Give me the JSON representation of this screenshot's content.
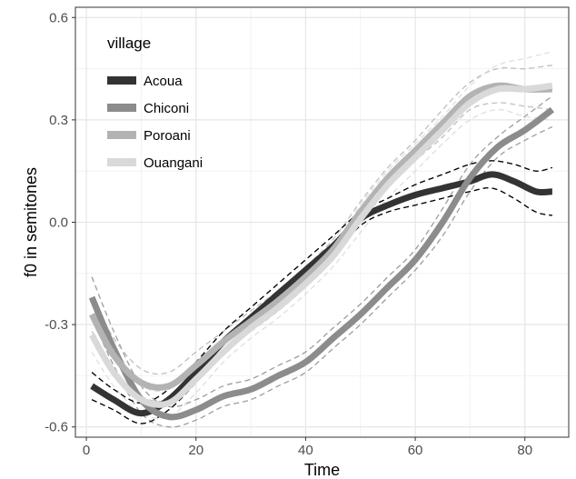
{
  "chart_data": {
    "type": "line",
    "xlabel": "Time",
    "ylabel": "f0 in semitones",
    "xlim": [
      -2,
      88
    ],
    "ylim": [
      -0.63,
      0.63
    ],
    "x_ticks": [
      0,
      20,
      40,
      60,
      80
    ],
    "y_ticks": [
      -0.6,
      -0.3,
      0.0,
      0.3,
      0.6
    ],
    "x_tick_labels": [
      "0",
      "20",
      "40",
      "60",
      "80"
    ],
    "y_tick_labels": [
      "-0.6",
      "-0.3",
      "0.0",
      "0.3",
      "0.6"
    ],
    "grid": true,
    "legend": {
      "title": "village",
      "position": "top-left"
    },
    "confidence_band_color": "#000000",
    "series": [
      {
        "name": "Acoua",
        "color": "#333333",
        "points": [
          [
            1,
            -0.48
          ],
          [
            5,
            -0.52
          ],
          [
            10,
            -0.56
          ],
          [
            15,
            -0.52
          ],
          [
            20,
            -0.44
          ],
          [
            25,
            -0.35
          ],
          [
            30,
            -0.28
          ],
          [
            35,
            -0.21
          ],
          [
            40,
            -0.14
          ],
          [
            45,
            -0.07
          ],
          [
            50,
            0.01
          ],
          [
            55,
            0.05
          ],
          [
            60,
            0.08
          ],
          [
            65,
            0.1
          ],
          [
            70,
            0.12
          ],
          [
            74,
            0.14
          ],
          [
            78,
            0.12
          ],
          [
            82,
            0.09
          ],
          [
            85,
            0.09
          ]
        ],
        "upper": [
          [
            1,
            -0.44
          ],
          [
            5,
            -0.49
          ],
          [
            10,
            -0.53
          ],
          [
            15,
            -0.49
          ],
          [
            20,
            -0.41
          ],
          [
            25,
            -0.32
          ],
          [
            30,
            -0.25
          ],
          [
            35,
            -0.18
          ],
          [
            40,
            -0.11
          ],
          [
            45,
            -0.04
          ],
          [
            50,
            0.03
          ],
          [
            55,
            0.07
          ],
          [
            60,
            0.11
          ],
          [
            65,
            0.14
          ],
          [
            70,
            0.17
          ],
          [
            74,
            0.18
          ],
          [
            78,
            0.17
          ],
          [
            82,
            0.15
          ],
          [
            85,
            0.16
          ]
        ],
        "lower": [
          [
            1,
            -0.52
          ],
          [
            5,
            -0.55
          ],
          [
            10,
            -0.59
          ],
          [
            15,
            -0.55
          ],
          [
            20,
            -0.47
          ],
          [
            25,
            -0.38
          ],
          [
            30,
            -0.31
          ],
          [
            35,
            -0.24
          ],
          [
            40,
            -0.17
          ],
          [
            45,
            -0.1
          ],
          [
            50,
            -0.01
          ],
          [
            55,
            0.03
          ],
          [
            60,
            0.05
          ],
          [
            65,
            0.07
          ],
          [
            70,
            0.09
          ],
          [
            74,
            0.1
          ],
          [
            78,
            0.07
          ],
          [
            82,
            0.03
          ],
          [
            85,
            0.02
          ]
        ]
      },
      {
        "name": "Chiconi",
        "color": "#8c8c8c",
        "points": [
          [
            1,
            -0.22
          ],
          [
            5,
            -0.37
          ],
          [
            10,
            -0.52
          ],
          [
            15,
            -0.57
          ],
          [
            20,
            -0.55
          ],
          [
            25,
            -0.51
          ],
          [
            30,
            -0.49
          ],
          [
            35,
            -0.45
          ],
          [
            40,
            -0.41
          ],
          [
            45,
            -0.34
          ],
          [
            50,
            -0.27
          ],
          [
            55,
            -0.19
          ],
          [
            60,
            -0.11
          ],
          [
            65,
            0.0
          ],
          [
            70,
            0.13
          ],
          [
            75,
            0.22
          ],
          [
            80,
            0.27
          ],
          [
            85,
            0.33
          ]
        ],
        "upper": [
          [
            1,
            -0.16
          ],
          [
            5,
            -0.32
          ],
          [
            10,
            -0.48
          ],
          [
            15,
            -0.54
          ],
          [
            20,
            -0.52
          ],
          [
            25,
            -0.48
          ],
          [
            30,
            -0.46
          ],
          [
            35,
            -0.42
          ],
          [
            40,
            -0.38
          ],
          [
            45,
            -0.31
          ],
          [
            50,
            -0.24
          ],
          [
            55,
            -0.16
          ],
          [
            60,
            -0.08
          ],
          [
            65,
            0.04
          ],
          [
            70,
            0.17
          ],
          [
            75,
            0.25
          ],
          [
            80,
            0.31
          ],
          [
            85,
            0.37
          ]
        ],
        "lower": [
          [
            1,
            -0.28
          ],
          [
            5,
            -0.42
          ],
          [
            10,
            -0.56
          ],
          [
            15,
            -0.6
          ],
          [
            20,
            -0.58
          ],
          [
            25,
            -0.54
          ],
          [
            30,
            -0.52
          ],
          [
            35,
            -0.48
          ],
          [
            40,
            -0.44
          ],
          [
            45,
            -0.37
          ],
          [
            50,
            -0.3
          ],
          [
            55,
            -0.22
          ],
          [
            60,
            -0.14
          ],
          [
            65,
            -0.04
          ],
          [
            70,
            0.09
          ],
          [
            75,
            0.19
          ],
          [
            80,
            0.24
          ],
          [
            85,
            0.28
          ]
        ]
      },
      {
        "name": "Poroani",
        "color": "#b3b3b3",
        "points": [
          [
            1,
            -0.27
          ],
          [
            5,
            -0.39
          ],
          [
            10,
            -0.47
          ],
          [
            15,
            -0.48
          ],
          [
            20,
            -0.42
          ],
          [
            25,
            -0.35
          ],
          [
            30,
            -0.29
          ],
          [
            35,
            -0.23
          ],
          [
            40,
            -0.16
          ],
          [
            45,
            -0.08
          ],
          [
            50,
            0.03
          ],
          [
            55,
            0.13
          ],
          [
            60,
            0.21
          ],
          [
            65,
            0.29
          ],
          [
            70,
            0.37
          ],
          [
            75,
            0.4
          ],
          [
            80,
            0.39
          ],
          [
            85,
            0.39
          ]
        ],
        "upper": [
          [
            1,
            -0.22
          ],
          [
            5,
            -0.34
          ],
          [
            10,
            -0.43
          ],
          [
            15,
            -0.44
          ],
          [
            20,
            -0.38
          ],
          [
            25,
            -0.32
          ],
          [
            30,
            -0.26
          ],
          [
            35,
            -0.2
          ],
          [
            40,
            -0.13
          ],
          [
            45,
            -0.05
          ],
          [
            50,
            0.06
          ],
          [
            55,
            0.16
          ],
          [
            60,
            0.24
          ],
          [
            65,
            0.33
          ],
          [
            70,
            0.41
          ],
          [
            75,
            0.45
          ],
          [
            80,
            0.45
          ],
          [
            85,
            0.46
          ]
        ],
        "lower": [
          [
            1,
            -0.32
          ],
          [
            5,
            -0.43
          ],
          [
            10,
            -0.51
          ],
          [
            15,
            -0.52
          ],
          [
            20,
            -0.45
          ],
          [
            25,
            -0.38
          ],
          [
            30,
            -0.32
          ],
          [
            35,
            -0.26
          ],
          [
            40,
            -0.19
          ],
          [
            45,
            -0.11
          ],
          [
            50,
            0.0
          ],
          [
            55,
            0.1
          ],
          [
            60,
            0.18
          ],
          [
            65,
            0.25
          ],
          [
            70,
            0.33
          ],
          [
            75,
            0.35
          ],
          [
            80,
            0.34
          ],
          [
            85,
            0.33
          ]
        ]
      },
      {
        "name": "Ouangani",
        "color": "#d9d9d9",
        "points": [
          [
            1,
            -0.33
          ],
          [
            5,
            -0.44
          ],
          [
            10,
            -0.52
          ],
          [
            15,
            -0.53
          ],
          [
            20,
            -0.46
          ],
          [
            25,
            -0.38
          ],
          [
            30,
            -0.31
          ],
          [
            35,
            -0.25
          ],
          [
            40,
            -0.18
          ],
          [
            45,
            -0.1
          ],
          [
            50,
            0.01
          ],
          [
            55,
            0.11
          ],
          [
            60,
            0.19
          ],
          [
            65,
            0.27
          ],
          [
            70,
            0.35
          ],
          [
            75,
            0.39
          ],
          [
            80,
            0.39
          ],
          [
            85,
            0.4
          ]
        ],
        "upper": [
          [
            1,
            -0.28
          ],
          [
            5,
            -0.4
          ],
          [
            10,
            -0.48
          ],
          [
            15,
            -0.49
          ],
          [
            20,
            -0.42
          ],
          [
            25,
            -0.35
          ],
          [
            30,
            -0.28
          ],
          [
            35,
            -0.22
          ],
          [
            40,
            -0.15
          ],
          [
            45,
            -0.07
          ],
          [
            50,
            0.05
          ],
          [
            55,
            0.15
          ],
          [
            60,
            0.23
          ],
          [
            65,
            0.31
          ],
          [
            70,
            0.4
          ],
          [
            75,
            0.46
          ],
          [
            80,
            0.48
          ],
          [
            85,
            0.5
          ]
        ],
        "lower": [
          [
            1,
            -0.38
          ],
          [
            5,
            -0.48
          ],
          [
            10,
            -0.56
          ],
          [
            15,
            -0.57
          ],
          [
            20,
            -0.5
          ],
          [
            25,
            -0.41
          ],
          [
            30,
            -0.34
          ],
          [
            35,
            -0.28
          ],
          [
            40,
            -0.21
          ],
          [
            45,
            -0.13
          ],
          [
            50,
            -0.03
          ],
          [
            55,
            0.07
          ],
          [
            60,
            0.15
          ],
          [
            65,
            0.23
          ],
          [
            70,
            0.3
          ],
          [
            75,
            0.33
          ],
          [
            80,
            0.31
          ],
          [
            85,
            0.3
          ]
        ]
      }
    ]
  }
}
